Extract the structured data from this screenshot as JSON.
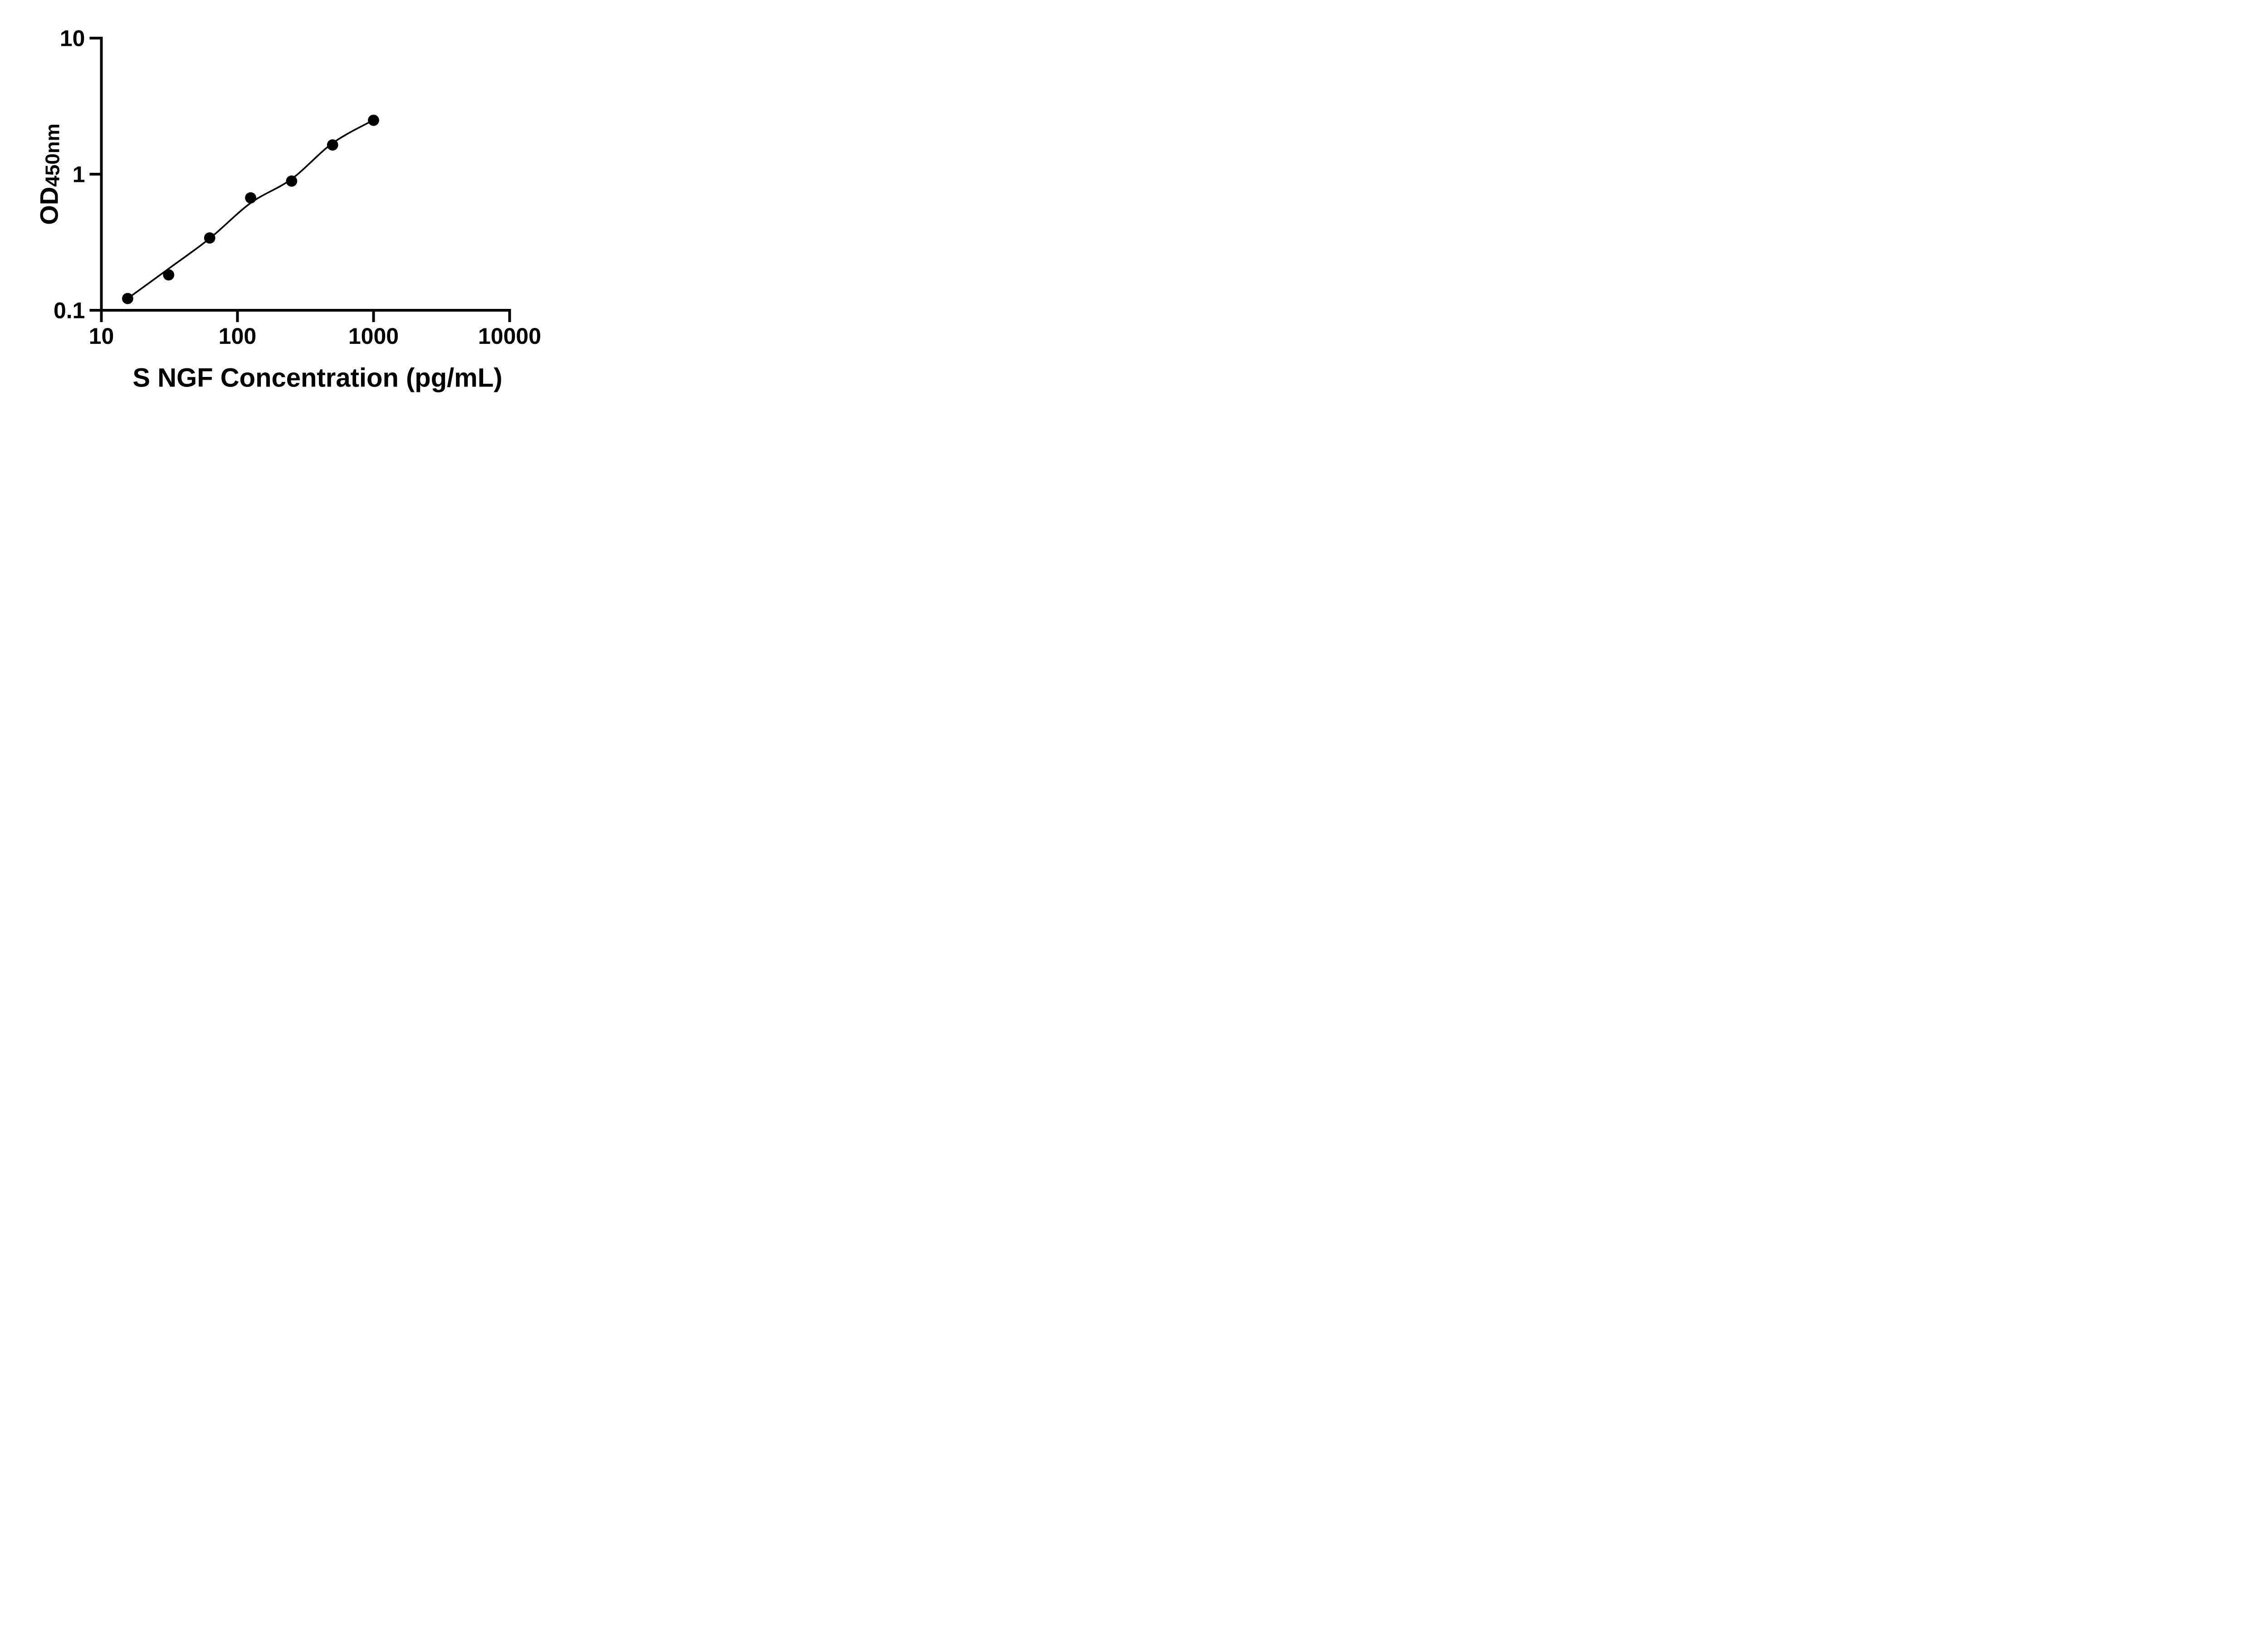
{
  "figure": {
    "kind": "ELISA standard curve",
    "background_color": "#ffffff",
    "foreground_color": "#000000"
  },
  "chart_data": {
    "type": "scatter",
    "title": "",
    "xlabel": "S NGF Concentration (pg/mL)",
    "ylabel": "OD450nm",
    "ylabel_main": "OD",
    "ylabel_sub": "450nm",
    "x_scale": "log",
    "y_scale": "log",
    "xlim": [
      10,
      10000
    ],
    "ylim": [
      0.1,
      10
    ],
    "x_ticks": [
      10,
      100,
      1000,
      10000
    ],
    "x_tick_labels": [
      "10",
      "100",
      "1000",
      "10000"
    ],
    "y_ticks": [
      0.1,
      1,
      10
    ],
    "y_tick_labels": [
      "0.1",
      "1",
      "10"
    ],
    "grid": false,
    "legend": "none",
    "marker_color": "#000000",
    "line_color": "#000000",
    "points": [
      {
        "x": 15.6,
        "y": 0.122
      },
      {
        "x": 31.2,
        "y": 0.182
      },
      {
        "x": 62.5,
        "y": 0.34
      },
      {
        "x": 125,
        "y": 0.67
      },
      {
        "x": 250,
        "y": 0.89
      },
      {
        "x": 500,
        "y": 1.64
      },
      {
        "x": 1000,
        "y": 2.49
      }
    ],
    "curve": [
      {
        "x": 15.6,
        "y": 0.122
      },
      {
        "x": 31.2,
        "y": 0.202
      },
      {
        "x": 62.5,
        "y": 0.337
      },
      {
        "x": 125,
        "y": 0.614
      },
      {
        "x": 250,
        "y": 0.922
      },
      {
        "x": 500,
        "y": 1.69
      },
      {
        "x": 1000,
        "y": 2.5
      }
    ]
  }
}
